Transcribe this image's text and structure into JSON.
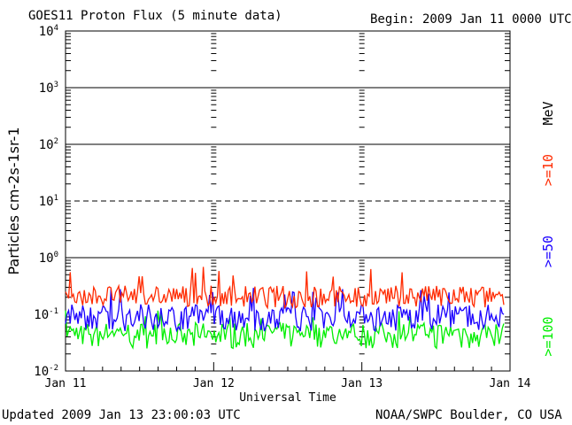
{
  "header": {
    "title": "GOES11 Proton Flux (5 minute data)",
    "begin": "Begin: 2009 Jan 11 0000 UTC"
  },
  "footer": {
    "updated": "Updated 2009 Jan 13 23:00:03 UTC",
    "credit": "NOAA/SWPC Boulder, CO USA"
  },
  "side_labels": {
    "unit": "MeV",
    "ge10": ">=10",
    "ge50": ">=50",
    "ge100": ">=100"
  },
  "colors": {
    "ge10": "#ff2a00",
    "ge50": "#1a00ff",
    "ge100": "#00ee00",
    "axis": "#000000"
  },
  "chart_data": {
    "type": "line",
    "title": "GOES11 Proton Flux (5 minute data)",
    "xlabel": "Universal Time",
    "ylabel": "Particles cm-2s-1sr-1",
    "yscale": "log",
    "ylim": [
      0.01,
      10000
    ],
    "x_ticks": [
      "Jan 11",
      "Jan 12",
      "Jan 13",
      "Jan 14"
    ],
    "y_ticks": [
      {
        "base": "10",
        "exp": "4"
      },
      {
        "base": "10",
        "exp": "3"
      },
      {
        "base": "10",
        "exp": "2"
      },
      {
        "base": "10",
        "exp": "1"
      },
      {
        "base": "10",
        "exp": "0"
      },
      {
        "base": "10",
        "exp": "-1"
      },
      {
        "base": "10",
        "exp": "-2"
      }
    ],
    "xlim": [
      "2009-01-11 00:00",
      "2009-01-14 00:00"
    ],
    "series_x_range": [
      "2009-01-11 00:00",
      "2009-01-13 23:00"
    ],
    "series": [
      {
        "name": ">=10",
        "color": "#ff2a00",
        "typical": 0.22,
        "min": 0.13,
        "max": 0.7
      },
      {
        "name": ">=50",
        "color": "#1a00ff",
        "typical": 0.1,
        "min": 0.05,
        "max": 0.3
      },
      {
        "name": ">=100",
        "color": "#00ee00",
        "typical": 0.05,
        "min": 0.025,
        "max": 0.12
      }
    ],
    "grid": {
      "solid_decades": [
        1000,
        100,
        1
      ],
      "dashed_decades": [
        10
      ]
    }
  }
}
